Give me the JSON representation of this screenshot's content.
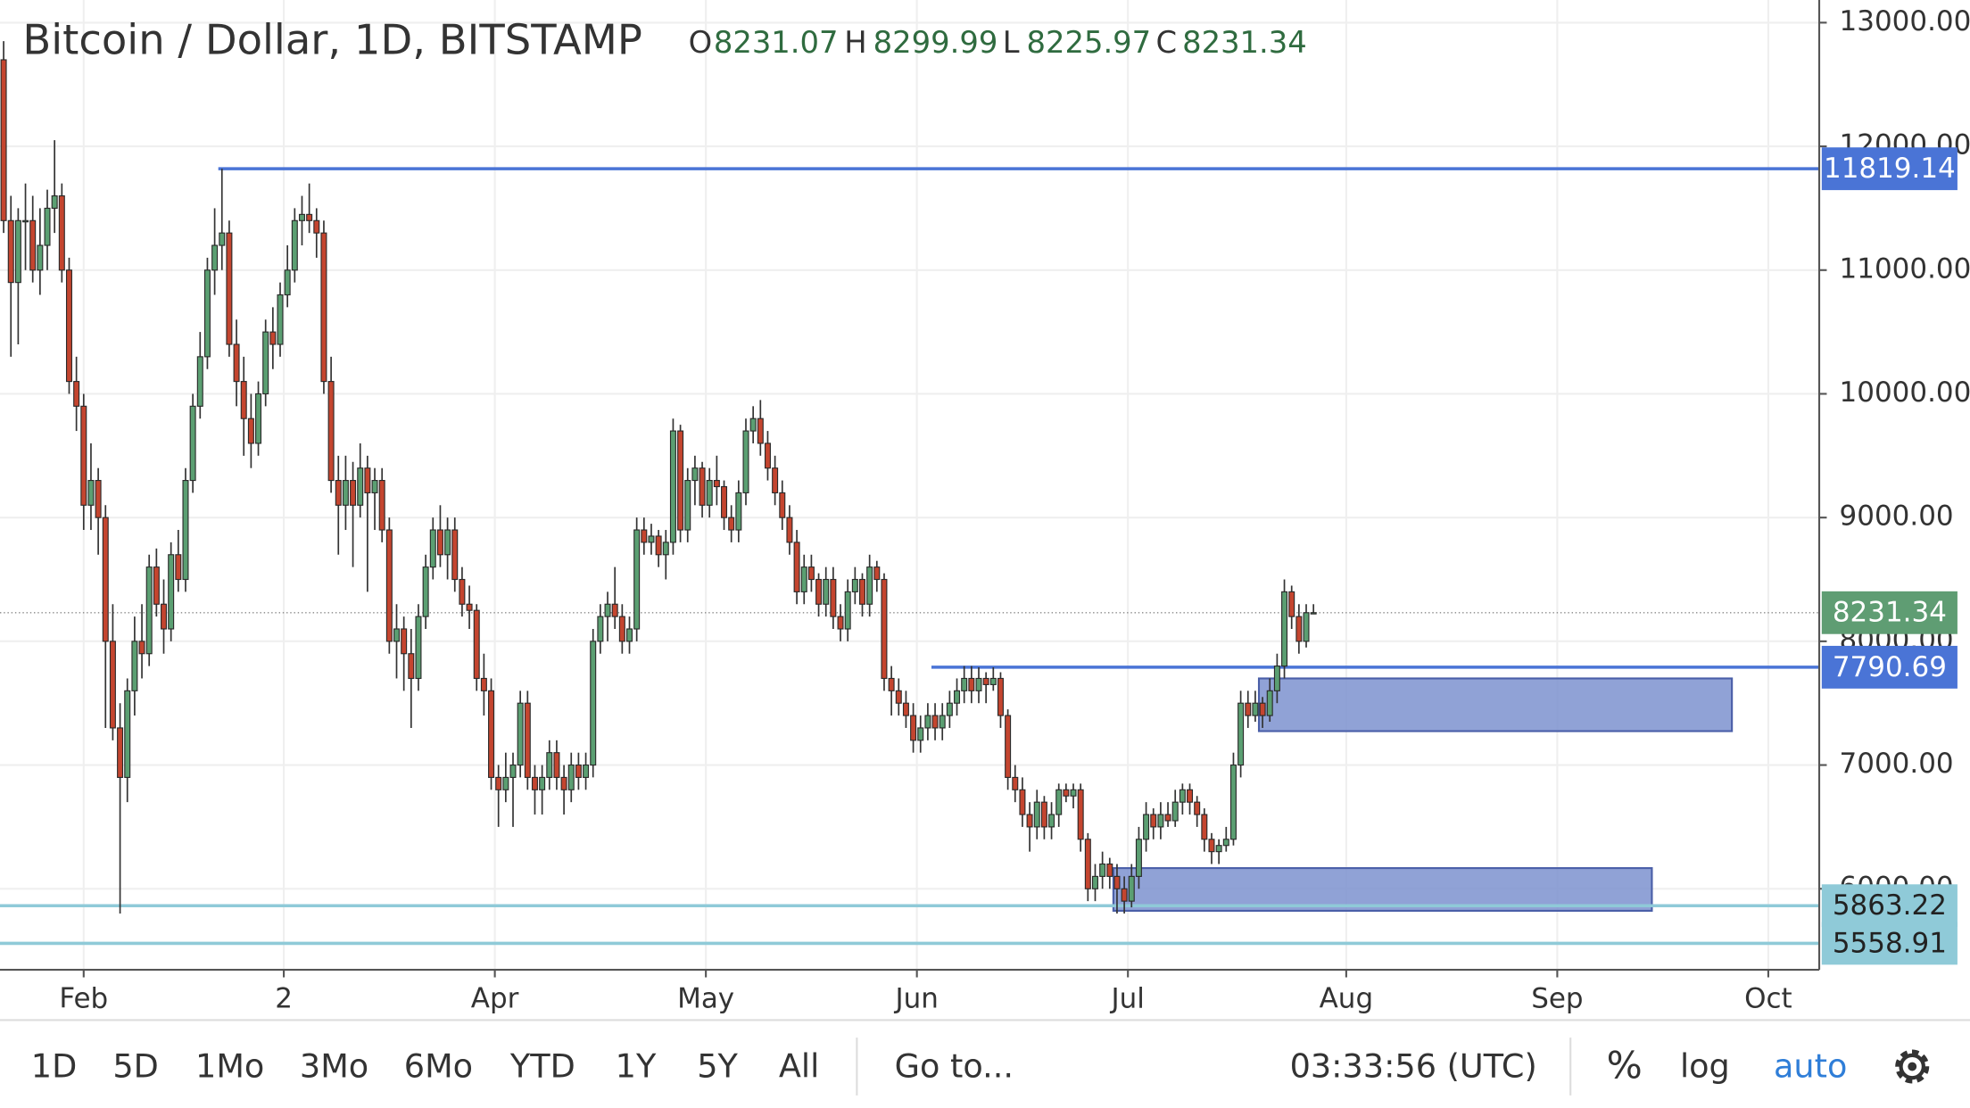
{
  "chart_data": {
    "type": "candlestick",
    "title": "Bitcoin / Dollar, 1D, BITSTAMP",
    "ohlc_legend": [
      {
        "label": "O",
        "value": 8231.07
      },
      {
        "label": "H",
        "value": 8299.99
      },
      {
        "label": "L",
        "value": 8225.97
      },
      {
        "label": "C",
        "value": 8231.34
      }
    ],
    "up_color": "#5b9f72",
    "down_color": "#c4452f",
    "xlim": [
      0,
      250
    ],
    "xticks": [
      {
        "value": 11.5,
        "label": "Feb"
      },
      {
        "value": 39,
        "label": "2"
      },
      {
        "value": 68,
        "label": "Apr"
      },
      {
        "value": 97,
        "label": "May"
      },
      {
        "value": 126,
        "label": "Jun"
      },
      {
        "value": 155,
        "label": "Jul"
      },
      {
        "value": 185,
        "label": "Aug"
      },
      {
        "value": 214,
        "label": "Sep"
      },
      {
        "value": 243,
        "label": "Oct"
      }
    ],
    "ylim": [
      5345,
      13183
    ],
    "yticks": [
      {
        "value": 6000,
        "label": "6000.00"
      },
      {
        "value": 7000,
        "label": "7000.00"
      },
      {
        "value": 8000,
        "label": "8000.00"
      },
      {
        "value": 9000,
        "label": "9000.00"
      },
      {
        "value": 10000,
        "label": "10000.00"
      },
      {
        "value": 11000,
        "label": "11000.00"
      },
      {
        "value": 12000,
        "label": "12000.00"
      },
      {
        "value": 13000,
        "label": "13000.00"
      }
    ],
    "grid": true,
    "candles": [
      [
        12700,
        12850,
        11300,
        11400
      ],
      [
        11400,
        11600,
        10300,
        10900
      ],
      [
        10900,
        11500,
        10400,
        11400
      ],
      [
        11400,
        11700,
        11000,
        11400
      ],
      [
        11400,
        11600,
        10900,
        11000
      ],
      [
        11000,
        11500,
        10800,
        11200
      ],
      [
        11200,
        11650,
        11000,
        11500
      ],
      [
        11500,
        12050,
        11300,
        11600
      ],
      [
        11600,
        11700,
        10900,
        11000
      ],
      [
        11000,
        11100,
        10000,
        10100
      ],
      [
        10100,
        10300,
        9700,
        9900
      ],
      [
        9900,
        10000,
        8900,
        9100
      ],
      [
        9100,
        9600,
        8900,
        9300
      ],
      [
        9300,
        9400,
        8700,
        9000
      ],
      [
        9000,
        9100,
        7300,
        8000
      ],
      [
        8000,
        8300,
        7200,
        7300
      ],
      [
        7300,
        7500,
        5800,
        6900
      ],
      [
        6900,
        7700,
        6700,
        7600
      ],
      [
        7600,
        8200,
        7400,
        8000
      ],
      [
        8000,
        8300,
        7700,
        7900
      ],
      [
        7900,
        8700,
        7800,
        8600
      ],
      [
        8600,
        8750,
        8200,
        8300
      ],
      [
        8300,
        8500,
        7900,
        8100
      ],
      [
        8100,
        8800,
        8000,
        8700
      ],
      [
        8700,
        8900,
        8400,
        8500
      ],
      [
        8500,
        9400,
        8400,
        9300
      ],
      [
        9300,
        10000,
        9200,
        9900
      ],
      [
        9900,
        10500,
        9800,
        10300
      ],
      [
        10300,
        11100,
        10200,
        11000
      ],
      [
        11000,
        11500,
        10800,
        11200
      ],
      [
        11200,
        11819,
        11000,
        11300
      ],
      [
        11300,
        11400,
        10300,
        10400
      ],
      [
        10400,
        10600,
        9900,
        10100
      ],
      [
        10100,
        10300,
        9500,
        9800
      ],
      [
        9800,
        10000,
        9400,
        9600
      ],
      [
        9600,
        10100,
        9500,
        10000
      ],
      [
        10000,
        10600,
        9900,
        10500
      ],
      [
        10500,
        10700,
        10200,
        10400
      ],
      [
        10400,
        10900,
        10300,
        10800
      ],
      [
        10800,
        11200,
        10700,
        11000
      ],
      [
        11000,
        11500,
        10900,
        11400
      ],
      [
        11400,
        11600,
        11200,
        11450
      ],
      [
        11450,
        11700,
        11300,
        11400
      ],
      [
        11400,
        11500,
        11100,
        11300
      ],
      [
        11300,
        11400,
        10000,
        10100
      ],
      [
        10100,
        10300,
        9200,
        9300
      ],
      [
        9300,
        9500,
        8700,
        9100
      ],
      [
        9100,
        9500,
        8900,
        9300
      ],
      [
        9300,
        9450,
        8600,
        9100
      ],
      [
        9100,
        9600,
        9000,
        9400
      ],
      [
        9400,
        9500,
        8400,
        9200
      ],
      [
        9200,
        9400,
        8900,
        9300
      ],
      [
        9300,
        9400,
        8800,
        8900
      ],
      [
        8900,
        9000,
        7900,
        8000
      ],
      [
        8000,
        8300,
        7700,
        8100
      ],
      [
        8100,
        8200,
        7600,
        7900
      ],
      [
        7900,
        8100,
        7300,
        7700
      ],
      [
        7700,
        8300,
        7600,
        8200
      ],
      [
        8200,
        8700,
        8100,
        8600
      ],
      [
        8600,
        9000,
        8500,
        8900
      ],
      [
        8900,
        9100,
        8600,
        8700
      ],
      [
        8700,
        9000,
        8500,
        8900
      ],
      [
        8900,
        9000,
        8400,
        8500
      ],
      [
        8500,
        8600,
        8200,
        8300
      ],
      [
        8300,
        8450,
        8100,
        8250
      ],
      [
        8250,
        8300,
        7600,
        7700
      ],
      [
        7700,
        7900,
        7400,
        7600
      ],
      [
        7600,
        7700,
        6800,
        6900
      ],
      [
        6900,
        7000,
        6500,
        6800
      ],
      [
        6800,
        7100,
        6700,
        6900
      ],
      [
        6900,
        7100,
        6500,
        7000
      ],
      [
        7000,
        7600,
        6900,
        7500
      ],
      [
        7500,
        7600,
        6800,
        6900
      ],
      [
        6900,
        7000,
        6600,
        6800
      ],
      [
        6800,
        7000,
        6600,
        6900
      ],
      [
        6900,
        7200,
        6800,
        7100
      ],
      [
        7100,
        7200,
        6800,
        6900
      ],
      [
        6900,
        7000,
        6600,
        6800
      ],
      [
        6800,
        7100,
        6700,
        7000
      ],
      [
        7000,
        7100,
        6800,
        6900
      ],
      [
        6900,
        7100,
        6800,
        7000
      ],
      [
        7000,
        8100,
        6900,
        8000
      ],
      [
        8000,
        8300,
        7900,
        8200
      ],
      [
        8200,
        8400,
        8000,
        8300
      ],
      [
        8300,
        8600,
        8100,
        8200
      ],
      [
        8200,
        8300,
        7900,
        8000
      ],
      [
        8000,
        8200,
        7900,
        8100
      ],
      [
        8100,
        9000,
        8000,
        8900
      ],
      [
        8900,
        9000,
        8700,
        8800
      ],
      [
        8800,
        8950,
        8700,
        8850
      ],
      [
        8850,
        8900,
        8600,
        8700
      ],
      [
        8700,
        8900,
        8500,
        8800
      ],
      [
        8800,
        9800,
        8700,
        9700
      ],
      [
        9700,
        9750,
        8800,
        8900
      ],
      [
        8900,
        9400,
        8800,
        9300
      ],
      [
        9300,
        9500,
        9100,
        9400
      ],
      [
        9400,
        9450,
        9000,
        9100
      ],
      [
        9100,
        9400,
        9000,
        9300
      ],
      [
        9300,
        9500,
        9100,
        9250
      ],
      [
        9250,
        9300,
        8900,
        9000
      ],
      [
        9000,
        9100,
        8800,
        8900
      ],
      [
        8900,
        9300,
        8800,
        9200
      ],
      [
        9200,
        9800,
        9100,
        9700
      ],
      [
        9700,
        9900,
        9600,
        9800
      ],
      [
        9800,
        9950,
        9500,
        9600
      ],
      [
        9600,
        9700,
        9300,
        9400
      ],
      [
        9400,
        9500,
        9100,
        9200
      ],
      [
        9200,
        9300,
        8900,
        9000
      ],
      [
        9000,
        9100,
        8700,
        8800
      ],
      [
        8800,
        8900,
        8300,
        8400
      ],
      [
        8400,
        8700,
        8300,
        8600
      ],
      [
        8600,
        8700,
        8400,
        8500
      ],
      [
        8500,
        8550,
        8200,
        8300
      ],
      [
        8300,
        8600,
        8200,
        8500
      ],
      [
        8500,
        8600,
        8100,
        8200
      ],
      [
        8200,
        8300,
        8000,
        8100
      ],
      [
        8100,
        8500,
        8000,
        8400
      ],
      [
        8400,
        8600,
        8300,
        8500
      ],
      [
        8500,
        8550,
        8200,
        8300
      ],
      [
        8300,
        8700,
        8200,
        8600
      ],
      [
        8600,
        8650,
        8400,
        8500
      ],
      [
        8500,
        8550,
        7600,
        7700
      ],
      [
        7700,
        7800,
        7400,
        7600
      ],
      [
        7600,
        7700,
        7400,
        7500
      ],
      [
        7500,
        7600,
        7300,
        7400
      ],
      [
        7400,
        7500,
        7100,
        7200
      ],
      [
        7200,
        7400,
        7100,
        7300
      ],
      [
        7300,
        7500,
        7200,
        7400
      ],
      [
        7400,
        7500,
        7200,
        7300
      ],
      [
        7300,
        7500,
        7200,
        7400
      ],
      [
        7400,
        7600,
        7300,
        7500
      ],
      [
        7500,
        7700,
        7400,
        7600
      ],
      [
        7600,
        7800,
        7500,
        7700
      ],
      [
        7700,
        7800,
        7500,
        7600
      ],
      [
        7600,
        7790,
        7500,
        7700
      ],
      [
        7700,
        7750,
        7500,
        7650
      ],
      [
        7650,
        7790,
        7600,
        7700
      ],
      [
        7700,
        7750,
        7300,
        7400
      ],
      [
        7400,
        7450,
        6800,
        6900
      ],
      [
        6900,
        7000,
        6700,
        6800
      ],
      [
        6800,
        6900,
        6500,
        6600
      ],
      [
        6600,
        6700,
        6300,
        6500
      ],
      [
        6500,
        6800,
        6400,
        6700
      ],
      [
        6700,
        6750,
        6400,
        6500
      ],
      [
        6500,
        6700,
        6400,
        6600
      ],
      [
        6600,
        6850,
        6500,
        6800
      ],
      [
        6800,
        6850,
        6700,
        6750
      ],
      [
        6750,
        6850,
        6650,
        6800
      ],
      [
        6800,
        6850,
        6300,
        6400
      ],
      [
        6400,
        6450,
        5900,
        6000
      ],
      [
        6000,
        6200,
        5900,
        6100
      ],
      [
        6100,
        6300,
        6000,
        6200
      ],
      [
        6200,
        6250,
        6000,
        6100
      ],
      [
        6100,
        6200,
        5800,
        6000
      ],
      [
        6000,
        6100,
        5800,
        5900
      ],
      [
        5900,
        6200,
        5850,
        6100
      ],
      [
        6100,
        6500,
        6000,
        6400
      ],
      [
        6400,
        6700,
        6300,
        6600
      ],
      [
        6600,
        6650,
        6400,
        6500
      ],
      [
        6500,
        6700,
        6400,
        6600
      ],
      [
        6600,
        6700,
        6500,
        6550
      ],
      [
        6550,
        6800,
        6500,
        6700
      ],
      [
        6700,
        6850,
        6600,
        6800
      ],
      [
        6800,
        6850,
        6600,
        6700
      ],
      [
        6700,
        6750,
        6500,
        6600
      ],
      [
        6600,
        6650,
        6300,
        6400
      ],
      [
        6400,
        6450,
        6200,
        6300
      ],
      [
        6300,
        6400,
        6200,
        6350
      ],
      [
        6350,
        6500,
        6300,
        6400
      ],
      [
        6400,
        7100,
        6350,
        7000
      ],
      [
        7000,
        7600,
        6900,
        7500
      ],
      [
        7500,
        7600,
        7300,
        7400
      ],
      [
        7400,
        7600,
        7350,
        7500
      ],
      [
        7500,
        7550,
        7300,
        7400
      ],
      [
        7400,
        7700,
        7350,
        7600
      ],
      [
        7600,
        7900,
        7500,
        7800
      ],
      [
        7800,
        8500,
        7700,
        8400
      ],
      [
        8400,
        8450,
        8100,
        8200
      ],
      [
        8200,
        8300,
        7900,
        8000
      ],
      [
        8000,
        8300,
        7950,
        8231.07
      ],
      [
        8231.07,
        8299.99,
        8225.97,
        8231.34
      ]
    ],
    "hlines": [
      {
        "value": 11819.14,
        "color": "#4a74d6",
        "x_start": 30,
        "dashed": false
      },
      {
        "value": 8231.34,
        "color": "#5f9d73",
        "x_start": 0,
        "dashed": true
      },
      {
        "value": 7790.69,
        "color": "#4a74d6",
        "x_start": 128,
        "dashed": false
      },
      {
        "value": 5863.22,
        "color": "#8fcad8",
        "x_start": 0,
        "dashed": false
      },
      {
        "value": 5558.91,
        "color": "#8fcad8",
        "x_start": 0,
        "dashed": false
      }
    ],
    "boxes": [
      {
        "x": [
          173,
          238
        ],
        "y": [
          7274,
          7700
        ],
        "color": "#7d92cf"
      },
      {
        "x": [
          153,
          227
        ],
        "y": [
          5822,
          6167
        ],
        "color": "#7d92cf"
      }
    ]
  },
  "toolbar": {
    "ranges": [
      "1D",
      "5D",
      "1Mo",
      "3Mo",
      "6Mo",
      "YTD",
      "1Y",
      "5Y",
      "All"
    ],
    "goto": "Go to...",
    "clock": "03:33:56 (UTC)",
    "options": [
      "%",
      "log",
      "auto"
    ]
  }
}
